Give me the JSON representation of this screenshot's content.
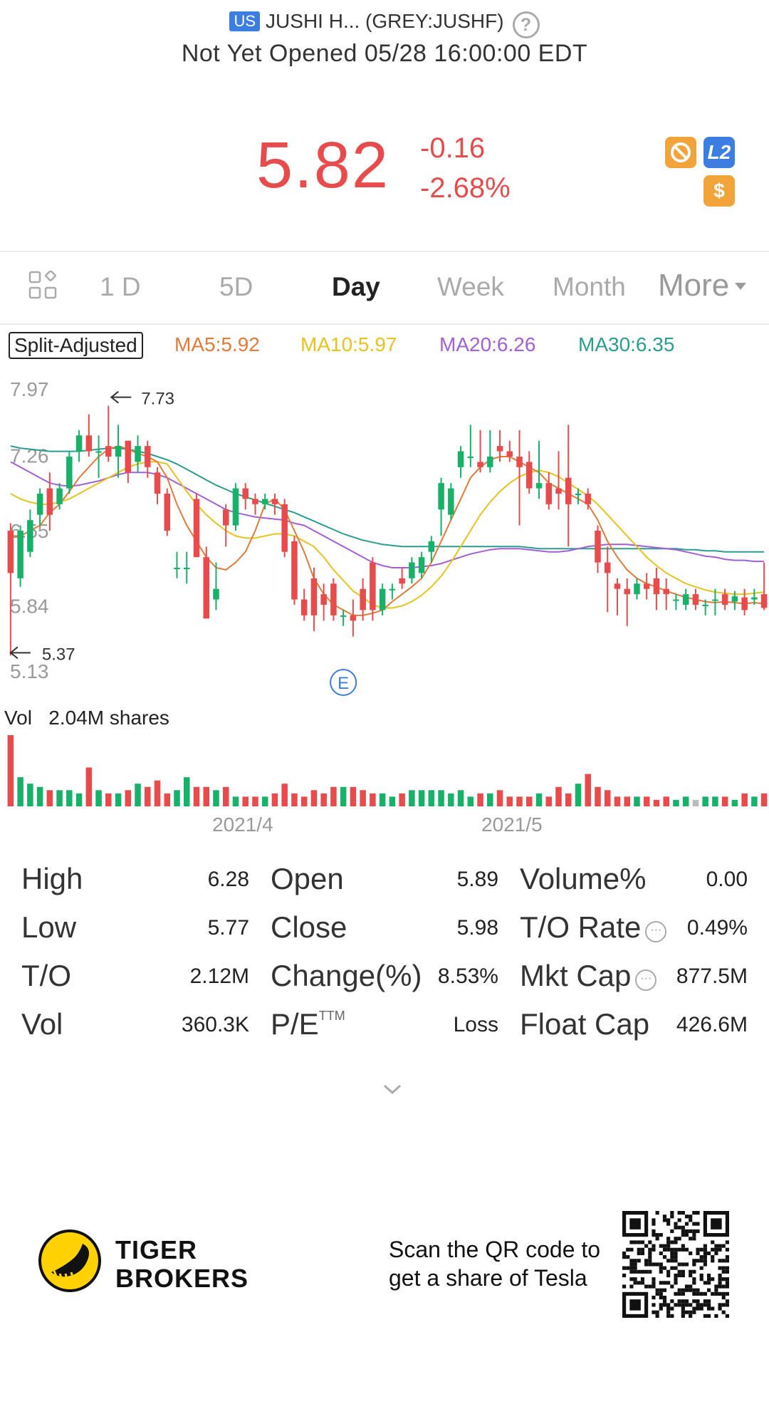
{
  "header": {
    "market_badge": "US",
    "title": "JUSHI H... (GREY:JUSHF)",
    "help_glyph": "?",
    "status": "Not Yet Opened 05/28 16:00:00 EDT"
  },
  "quote": {
    "price": "5.82",
    "change": "-0.16",
    "change_pct": "-2.68%",
    "icon_l2": "L2",
    "icon_usd": "$",
    "color_down": "#e84b4b",
    "color_up": "#17b169"
  },
  "tabs": {
    "items": [
      "1 D",
      "5D",
      "Day",
      "Week",
      "Month",
      "More"
    ],
    "active": "Day"
  },
  "ma": {
    "split_adjusted": "Split-Adjusted",
    "ma5": "MA5:5.92",
    "ma10": "MA10:5.97",
    "ma20": "MA20:6.26",
    "ma30": "MA30:6.35",
    "colors": {
      "ma5": "#e07b3a",
      "ma10": "#e8c21f",
      "ma20": "#a35fd6",
      "ma30": "#2a9d8f"
    }
  },
  "chart_data": {
    "type": "candlestick",
    "y_axis_ticks": [
      "7.97",
      "7.26",
      "6.55",
      "5.84",
      "5.13"
    ],
    "ylim": [
      5.13,
      7.97
    ],
    "x_labels": [
      "2021/4",
      "2021/5"
    ],
    "annotations": {
      "high": "7.73",
      "low": "5.37",
      "event": "E"
    },
    "candles": [
      [
        6.55,
        6.15,
        6.62,
        5.37
      ],
      [
        6.1,
        6.55,
        6.6,
        6.02
      ],
      [
        6.35,
        6.65,
        6.75,
        6.3
      ],
      [
        6.7,
        6.9,
        6.95,
        6.6
      ],
      [
        6.95,
        6.7,
        7.1,
        6.55
      ],
      [
        6.8,
        6.95,
        7.0,
        6.75
      ],
      [
        6.95,
        7.25,
        7.3,
        6.9
      ],
      [
        7.3,
        7.45,
        7.5,
        7.2
      ],
      [
        7.45,
        7.3,
        7.65,
        7.25
      ],
      [
        7.3,
        7.3,
        7.45,
        7.05
      ],
      [
        7.35,
        7.25,
        7.73,
        7.2
      ],
      [
        7.25,
        7.35,
        7.55,
        7.05
      ],
      [
        7.4,
        7.1,
        7.4,
        7.0
      ],
      [
        7.2,
        7.35,
        7.45,
        7.1
      ],
      [
        7.35,
        7.15,
        7.4,
        7.05
      ],
      [
        7.1,
        6.9,
        7.15,
        6.8
      ],
      [
        6.9,
        6.55,
        6.95,
        6.5
      ],
      [
        6.2,
        6.2,
        6.35,
        6.1
      ],
      [
        6.2,
        6.2,
        6.35,
        6.05
      ],
      [
        6.85,
        6.3,
        6.9,
        6.3
      ],
      [
        6.3,
        5.72,
        6.4,
        5.72
      ],
      [
        5.9,
        6.0,
        6.25,
        5.8
      ],
      [
        6.75,
        6.6,
        6.8,
        6.4
      ],
      [
        6.6,
        6.95,
        7.0,
        6.55
      ],
      [
        6.95,
        6.85,
        7.0,
        6.75
      ],
      [
        6.85,
        6.8,
        6.9,
        6.7
      ],
      [
        6.8,
        6.85,
        6.9,
        6.75
      ],
      [
        6.85,
        6.8,
        6.9,
        6.7
      ],
      [
        6.8,
        6.35,
        6.85,
        6.3
      ],
      [
        6.45,
        5.9,
        6.5,
        5.85
      ],
      [
        5.9,
        5.75,
        6.0,
        5.7
      ],
      [
        6.1,
        5.75,
        6.2,
        5.6
      ],
      [
        5.95,
        5.85,
        6.05,
        5.7
      ],
      [
        6.05,
        5.75,
        6.1,
        5.7
      ],
      [
        5.75,
        5.75,
        5.8,
        5.65
      ],
      [
        5.75,
        5.7,
        5.9,
        5.55
      ],
      [
        6.0,
        5.8,
        6.1,
        5.7
      ],
      [
        6.25,
        5.8,
        6.3,
        5.7
      ],
      [
        5.8,
        6.0,
        6.05,
        5.75
      ],
      [
        6.0,
        6.0,
        6.05,
        5.9
      ],
      [
        6.1,
        6.05,
        6.2,
        6.0
      ],
      [
        6.1,
        6.25,
        6.3,
        6.05
      ],
      [
        6.15,
        6.3,
        6.35,
        6.1
      ],
      [
        6.35,
        6.45,
        6.5,
        6.25
      ],
      [
        6.75,
        7.0,
        7.05,
        6.5
      ],
      [
        6.7,
        6.95,
        7.0,
        6.65
      ],
      [
        7.15,
        7.3,
        7.35,
        7.05
      ],
      [
        7.25,
        7.25,
        7.55,
        7.15
      ],
      [
        7.2,
        7.15,
        7.5,
        7.1
      ],
      [
        7.15,
        7.25,
        7.5,
        7.1
      ],
      [
        7.35,
        7.3,
        7.5,
        7.2
      ],
      [
        7.3,
        7.25,
        7.4,
        7.2
      ],
      [
        7.25,
        7.15,
        7.5,
        6.6
      ],
      [
        7.2,
        6.95,
        7.3,
        6.9
      ],
      [
        6.95,
        7.0,
        7.4,
        6.85
      ],
      [
        7.0,
        6.8,
        7.1,
        6.75
      ],
      [
        6.95,
        6.9,
        7.3,
        6.75
      ],
      [
        7.05,
        6.8,
        7.55,
        6.4
      ],
      [
        6.9,
        6.9,
        6.95,
        6.8
      ],
      [
        6.9,
        6.8,
        6.95,
        6.75
      ],
      [
        6.55,
        6.25,
        6.6,
        6.15
      ],
      [
        6.25,
        6.15,
        6.4,
        5.78
      ],
      [
        6.05,
        6.0,
        6.1,
        5.75
      ],
      [
        6.0,
        5.95,
        6.1,
        5.65
      ],
      [
        5.95,
        6.05,
        6.1,
        5.9
      ],
      [
        6.05,
        6.0,
        6.15,
        5.9
      ],
      [
        6.1,
        5.95,
        6.2,
        5.8
      ],
      [
        6.0,
        5.95,
        6.1,
        5.8
      ],
      [
        5.9,
        5.9,
        5.95,
        5.8
      ],
      [
        5.85,
        5.95,
        6.0,
        5.8
      ],
      [
        5.95,
        5.85,
        6.0,
        5.8
      ],
      [
        5.85,
        5.85,
        5.9,
        5.75
      ],
      [
        5.9,
        5.9,
        6.0,
        5.75
      ],
      [
        5.95,
        5.85,
        6.0,
        5.8
      ],
      [
        5.88,
        5.93,
        5.98,
        5.8
      ],
      [
        5.92,
        5.8,
        6.0,
        5.75
      ],
      [
        5.9,
        5.92,
        6.0,
        5.85
      ],
      [
        5.95,
        5.82,
        6.25,
        5.8
      ]
    ],
    "ma5": [
      6.5,
      6.5,
      6.55,
      6.6,
      6.72,
      6.8,
      6.92,
      7.05,
      7.15,
      7.25,
      7.32,
      7.35,
      7.32,
      7.28,
      7.25,
      7.2,
      7.05,
      6.8,
      6.6,
      6.45,
      6.3,
      6.2,
      6.18,
      6.25,
      6.35,
      6.55,
      6.8,
      6.85,
      6.75,
      6.55,
      6.35,
      6.1,
      5.95,
      5.85,
      5.8,
      5.75,
      5.75,
      5.77,
      5.8,
      5.88,
      5.95,
      6.02,
      6.1,
      6.25,
      6.45,
      6.65,
      6.85,
      7.05,
      7.15,
      7.22,
      7.25,
      7.25,
      7.2,
      7.15,
      7.1,
      7.0,
      6.95,
      6.9,
      6.85,
      6.8,
      6.65,
      6.45,
      6.3,
      6.18,
      6.1,
      6.05,
      6.02,
      5.98,
      5.95,
      5.92,
      5.9,
      5.88,
      5.87,
      5.88,
      5.87,
      5.86,
      5.87,
      5.86
    ],
    "ma10": [
      6.9,
      6.85,
      6.82,
      6.8,
      6.8,
      6.82,
      6.85,
      6.9,
      6.95,
      7.0,
      7.05,
      7.1,
      7.15,
      7.18,
      7.2,
      7.2,
      7.18,
      7.05,
      6.92,
      6.8,
      6.7,
      6.62,
      6.55,
      6.5,
      6.48,
      6.48,
      6.5,
      6.52,
      6.52,
      6.5,
      6.45,
      6.4,
      6.3,
      6.18,
      6.08,
      5.98,
      5.92,
      5.85,
      5.82,
      5.82,
      5.84,
      5.88,
      5.94,
      6.02,
      6.12,
      6.25,
      6.4,
      6.55,
      6.7,
      6.82,
      6.92,
      7.0,
      7.06,
      7.1,
      7.12,
      7.1,
      7.06,
      7.0,
      6.94,
      6.88,
      6.8,
      6.7,
      6.6,
      6.5,
      6.4,
      6.3,
      6.22,
      6.15,
      6.1,
      6.05,
      6.02,
      5.99,
      5.97,
      5.96,
      5.95,
      5.95,
      5.96,
      5.97
    ],
    "ma20": [
      7.2,
      7.15,
      7.1,
      7.05,
      7.0,
      6.98,
      6.97,
      6.98,
      7.0,
      7.02,
      7.05,
      7.08,
      7.1,
      7.1,
      7.1,
      7.08,
      7.05,
      7.0,
      6.95,
      6.9,
      6.85,
      6.8,
      6.75,
      6.72,
      6.7,
      6.68,
      6.67,
      6.66,
      6.65,
      6.62,
      6.6,
      6.55,
      6.5,
      6.45,
      6.4,
      6.35,
      6.3,
      6.25,
      6.22,
      6.2,
      6.2,
      6.2,
      6.21,
      6.22,
      6.24,
      6.27,
      6.3,
      6.33,
      6.35,
      6.37,
      6.38,
      6.38,
      6.38,
      6.37,
      6.36,
      6.35,
      6.35,
      6.36,
      6.38,
      6.4,
      6.41,
      6.42,
      6.42,
      6.42,
      6.41,
      6.4,
      6.39,
      6.38,
      6.37,
      6.35,
      6.33,
      6.31,
      6.3,
      6.28,
      6.27,
      6.27,
      6.26,
      6.26
    ],
    "ma30": [
      7.35,
      7.33,
      7.32,
      7.31,
      7.3,
      7.3,
      7.3,
      7.3,
      7.31,
      7.32,
      7.33,
      7.33,
      7.32,
      7.3,
      7.28,
      7.25,
      7.22,
      7.18,
      7.13,
      7.08,
      7.03,
      6.98,
      6.94,
      6.9,
      6.87,
      6.84,
      6.81,
      6.78,
      6.75,
      6.72,
      6.68,
      6.64,
      6.6,
      6.56,
      6.52,
      6.49,
      6.46,
      6.44,
      6.42,
      6.41,
      6.4,
      6.4,
      6.4,
      6.4,
      6.4,
      6.4,
      6.4,
      6.4,
      6.4,
      6.4,
      6.4,
      6.4,
      6.4,
      6.39,
      6.38,
      6.38,
      6.38,
      6.38,
      6.38,
      6.38,
      6.38,
      6.38,
      6.38,
      6.38,
      6.38,
      6.38,
      6.38,
      6.38,
      6.38,
      6.37,
      6.37,
      6.36,
      6.36,
      6.35,
      6.35,
      6.35,
      6.35,
      6.35
    ]
  },
  "volume": {
    "label": "Vol",
    "total": "2.04M shares",
    "values": [
      2.2,
      0.9,
      0.7,
      0.6,
      0.5,
      0.5,
      0.5,
      0.4,
      1.2,
      0.5,
      0.4,
      0.4,
      0.5,
      0.7,
      0.6,
      0.8,
      0.4,
      0.5,
      0.9,
      0.6,
      0.6,
      0.5,
      0.6,
      0.3,
      0.3,
      0.3,
      0.3,
      0.4,
      0.7,
      0.4,
      0.3,
      0.5,
      0.4,
      0.6,
      0.6,
      0.6,
      0.5,
      0.4,
      0.4,
      0.3,
      0.4,
      0.5,
      0.5,
      0.5,
      0.5,
      0.4,
      0.5,
      0.3,
      0.4,
      0.4,
      0.5,
      0.3,
      0.3,
      0.3,
      0.4,
      0.3,
      0.6,
      0.4,
      0.7,
      1.0,
      0.6,
      0.5,
      0.3,
      0.3,
      0.3,
      0.3,
      0.2,
      0.3,
      0.2,
      0.3,
      0.2,
      0.3,
      0.3,
      0.3,
      0.2,
      0.4,
      0.3,
      0.4
    ]
  },
  "stats": {
    "high_label": "High",
    "high_value": "6.28",
    "open_label": "Open",
    "open_value": "5.89",
    "volpct_label": "Volume%",
    "volpct_value": "0.00",
    "low_label": "Low",
    "low_value": "5.77",
    "close_label": "Close",
    "close_value": "5.98",
    "torate_label": "T/O Rate",
    "torate_value": "0.49%",
    "to_label": "T/O",
    "to_value": "2.12M",
    "change_label": "Change(%)",
    "change_value": "8.53%",
    "mktcap_label": "Mkt Cap",
    "mktcap_value": "877.5M",
    "vol_label": "Vol",
    "vol_value": "360.3K",
    "pe_label": "P/E",
    "pe_sup": "TTM",
    "pe_value": "Loss",
    "floatcap_label": "Float Cap",
    "floatcap_value": "426.6M"
  },
  "footer": {
    "brand_line1": "TIGER",
    "brand_line2": "BROKERS",
    "promo_line1": "Scan the QR code to",
    "promo_line2": "get a share of Tesla"
  }
}
